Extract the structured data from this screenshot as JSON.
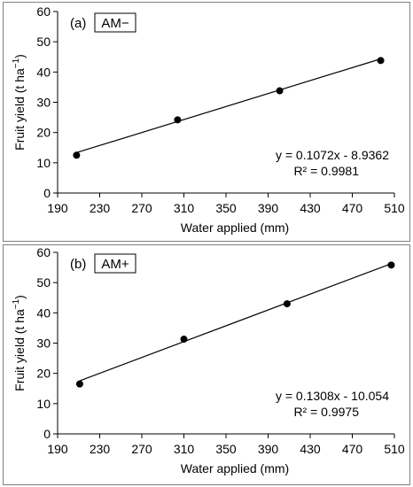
{
  "chart_data": [
    {
      "type": "scatter",
      "panel_label": "(a)",
      "treatment_label": "AM−",
      "xlabel": "Water applied (mm)",
      "ylabel": "Fruit yield (t ha",
      "ylabel_sup": "−1",
      "ylabel_close": ")",
      "xlim": [
        190,
        510
      ],
      "ylim": [
        0,
        60
      ],
      "xticks": [
        "190",
        "230",
        "270",
        "310",
        "350",
        "390",
        "430",
        "470",
        "510"
      ],
      "yticks": [
        "0",
        "10",
        "20",
        "30",
        "40",
        "50",
        "60"
      ],
      "grid": false,
      "points": [
        {
          "x": 208,
          "y": 12.5
        },
        {
          "x": 304,
          "y": 24.2
        },
        {
          "x": 401,
          "y": 33.8
        },
        {
          "x": 497,
          "y": 43.8
        }
      ],
      "trendline": {
        "slope": 0.1072,
        "intercept": -8.9362
      },
      "equation": "y = 0.1072x - 8.9362",
      "r2": "R² = 0.9981"
    },
    {
      "type": "scatter",
      "panel_label": "(b)",
      "treatment_label": "AM+",
      "xlabel": "Water applied (mm)",
      "ylabel": "Fruit yield (t ha",
      "ylabel_sup": "−1",
      "ylabel_close": ")",
      "xlim": [
        190,
        510
      ],
      "ylim": [
        0,
        60
      ],
      "xticks": [
        "190",
        "230",
        "270",
        "310",
        "350",
        "390",
        "430",
        "470",
        "510"
      ],
      "yticks": [
        "0",
        "10",
        "20",
        "30",
        "40",
        "50",
        "60"
      ],
      "grid": false,
      "points": [
        {
          "x": 211,
          "y": 16.5
        },
        {
          "x": 310,
          "y": 31.3
        },
        {
          "x": 408,
          "y": 43.0
        },
        {
          "x": 507,
          "y": 55.8
        }
      ],
      "trendline": {
        "slope": 0.1308,
        "intercept": -10.054
      },
      "equation": "y = 0.1308x - 10.054",
      "r2": "R² = 0.9975"
    }
  ]
}
